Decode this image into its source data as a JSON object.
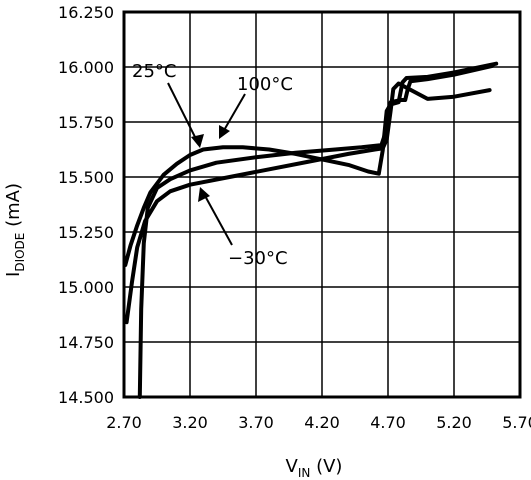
{
  "chart_data": {
    "type": "line",
    "xlabel": {
      "main": "V",
      "sub": "IN",
      "unit": " (V)"
    },
    "ylabel": {
      "main": "I",
      "sub": "DIODE",
      "unit": " (mA)"
    },
    "xlim": [
      2.7,
      5.7
    ],
    "ylim": [
      14.5,
      16.25
    ],
    "x_ticks": [
      2.7,
      3.2,
      3.7,
      4.2,
      4.7,
      5.2,
      5.7
    ],
    "x_tick_labels": [
      "2.70",
      "3.20",
      "3.70",
      "4.20",
      "4.70",
      "5.20",
      "5.70"
    ],
    "y_ticks": [
      14.5,
      14.75,
      15.0,
      15.25,
      15.5,
      15.75,
      16.0,
      16.25
    ],
    "y_tick_labels": [
      "14.500",
      "14.750",
      "15.000",
      "15.250",
      "15.500",
      "15.750",
      "16.000",
      "16.250"
    ],
    "grid": true,
    "series": [
      {
        "name": "25°C",
        "points": [
          [
            2.82,
            14.5
          ],
          [
            2.83,
            14.9
          ],
          [
            2.85,
            15.2
          ],
          [
            2.88,
            15.36
          ],
          [
            2.95,
            15.45
          ],
          [
            3.05,
            15.49
          ],
          [
            3.2,
            15.53
          ],
          [
            3.4,
            15.565
          ],
          [
            3.7,
            15.59
          ],
          [
            4.0,
            15.61
          ],
          [
            4.3,
            15.625
          ],
          [
            4.5,
            15.635
          ],
          [
            4.65,
            15.645
          ],
          [
            4.68,
            15.7
          ],
          [
            4.7,
            15.8
          ],
          [
            4.72,
            15.84
          ],
          [
            4.8,
            15.85
          ],
          [
            4.83,
            15.85
          ],
          [
            4.85,
            15.9
          ],
          [
            4.87,
            15.935
          ],
          [
            5.0,
            15.945
          ],
          [
            5.2,
            15.965
          ],
          [
            5.49,
            16.005
          ]
        ]
      },
      {
        "name": "100°C",
        "points": [
          [
            2.71,
            15.1
          ],
          [
            2.75,
            15.19
          ],
          [
            2.8,
            15.28
          ],
          [
            2.85,
            15.36
          ],
          [
            2.9,
            15.43
          ],
          [
            3.0,
            15.51
          ],
          [
            3.1,
            15.56
          ],
          [
            3.2,
            15.6
          ],
          [
            3.3,
            15.625
          ],
          [
            3.45,
            15.635
          ],
          [
            3.6,
            15.635
          ],
          [
            3.8,
            15.625
          ],
          [
            4.0,
            15.605
          ],
          [
            4.2,
            15.58
          ],
          [
            4.4,
            15.555
          ],
          [
            4.55,
            15.525
          ],
          [
            4.63,
            15.515
          ],
          [
            4.66,
            15.62
          ],
          [
            4.69,
            15.8
          ],
          [
            4.72,
            15.83
          ],
          [
            4.78,
            15.84
          ],
          [
            4.81,
            15.93
          ],
          [
            4.84,
            15.95
          ],
          [
            5.0,
            15.955
          ],
          [
            5.2,
            15.975
          ],
          [
            5.52,
            16.015
          ]
        ]
      },
      {
        "name": "-30°C",
        "points": [
          [
            2.72,
            14.84
          ],
          [
            2.76,
            15.02
          ],
          [
            2.8,
            15.18
          ],
          [
            2.86,
            15.3
          ],
          [
            2.95,
            15.39
          ],
          [
            3.05,
            15.435
          ],
          [
            3.2,
            15.465
          ],
          [
            3.5,
            15.5
          ],
          [
            3.8,
            15.535
          ],
          [
            4.1,
            15.57
          ],
          [
            4.4,
            15.605
          ],
          [
            4.6,
            15.625
          ],
          [
            4.66,
            15.63
          ],
          [
            4.69,
            15.67
          ],
          [
            4.72,
            15.8
          ],
          [
            4.74,
            15.9
          ],
          [
            4.78,
            15.925
          ],
          [
            5.0,
            15.855
          ],
          [
            5.2,
            15.865
          ],
          [
            5.47,
            15.895
          ]
        ]
      }
    ],
    "annotations": [
      {
        "text": "25°C"
      },
      {
        "text": "100°C"
      },
      {
        "text": "−30°C"
      }
    ]
  }
}
